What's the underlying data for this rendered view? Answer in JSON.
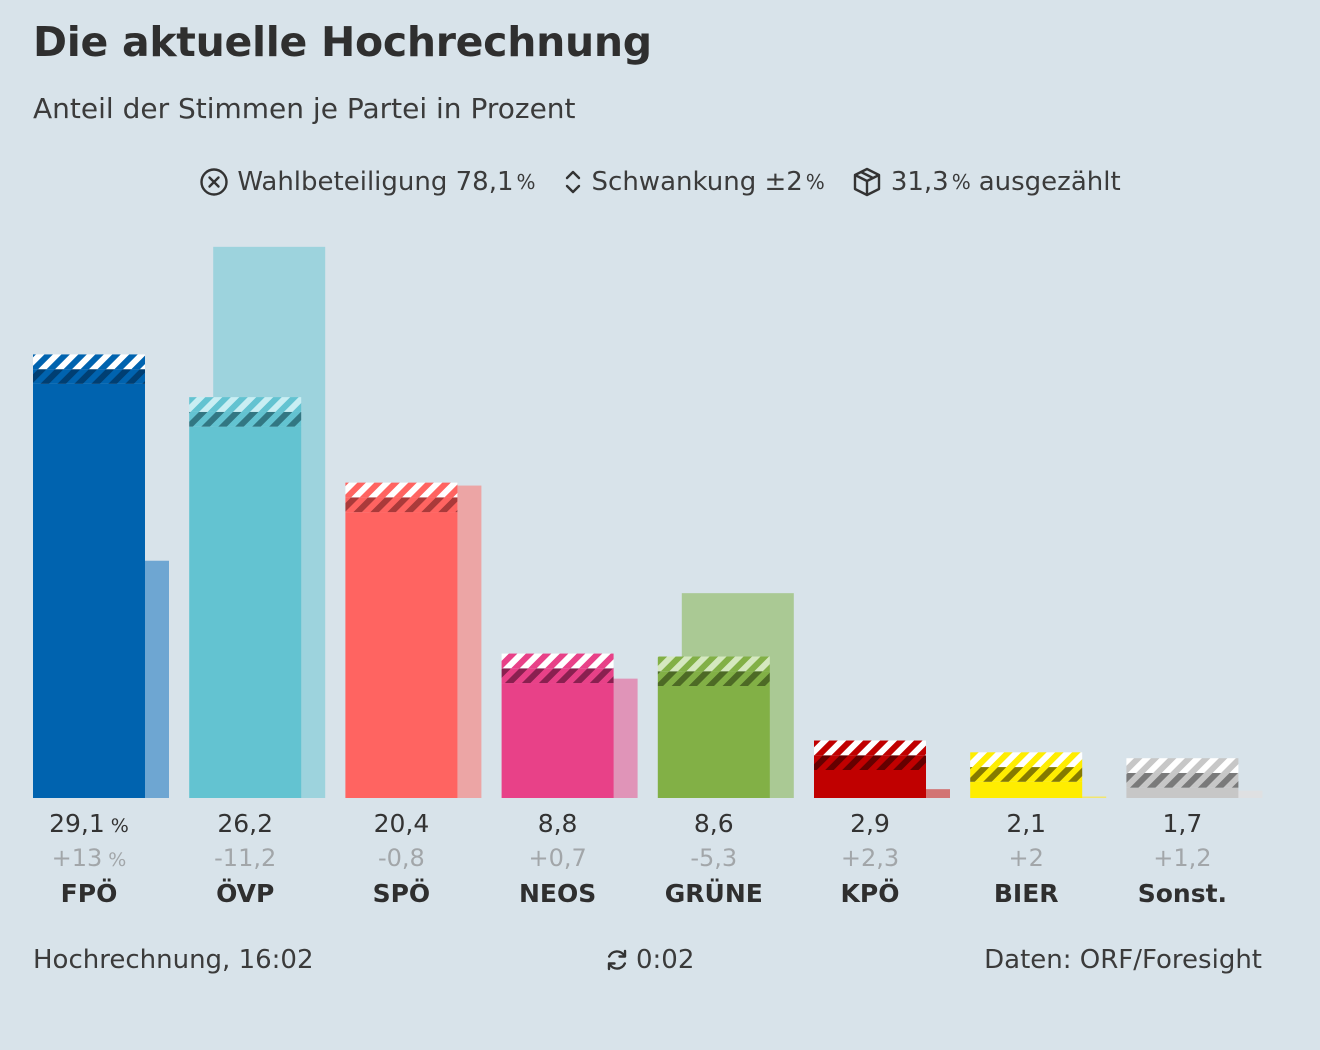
{
  "header": {
    "title": "Die aktuelle Hochrechnung",
    "subtitle": "Anteil der Stimmen je Partei in Prozent"
  },
  "info": {
    "turnout_label": "Wahlbeteiligung 78,1",
    "swing_label": "Schwankung ±2",
    "counted_value": "31,3",
    "counted_label": "ausgezählt",
    "pct_sign": "%"
  },
  "footer": {
    "timestamp": "Hochrechnung, 16:02",
    "refresh": "0:02",
    "source": "Daten: ORF/Foresight"
  },
  "chart_data": {
    "type": "bar",
    "categories": [
      "FPÖ",
      "ÖVP",
      "SPÖ",
      "NEOS",
      "GRÜNE",
      "KPÖ",
      "BIER",
      "Sonst."
    ],
    "series": [
      {
        "values": [
          29.1,
          26.2,
          20.4,
          8.8,
          8.6,
          2.9,
          2.1,
          1.7
        ]
      },
      {
        "values": [
          16.1,
          37.4,
          21.2,
          8.1,
          13.9,
          0.6,
          0.1,
          0.5
        ]
      }
    ],
    "value_labels": [
      "29,1",
      "26,2",
      "20,4",
      "8,8",
      "8,6",
      "2,9",
      "2,1",
      "1,7"
    ],
    "change_labels": [
      "+13",
      "-11,2",
      "-0,8",
      "+0,7",
      "-5,3",
      "+2,3",
      "+2",
      "+1,2"
    ],
    "uncertainty": 2,
    "ylim": [
      0,
      38
    ],
    "colors": [
      "#0063af",
      "#63c3d1",
      "#ff6461",
      "#e84188",
      "#82b046",
      "#c00000",
      "#ffed00",
      "#c7c7c7"
    ],
    "previous_colors": [
      "#6ea6d2",
      "#9dd3dd",
      "#eca5a5",
      "#e094b8",
      "#aac994",
      "#d27474",
      "#f2e66e",
      "#dfe0e2"
    ],
    "hatch_colors": [
      "#003f73",
      "#327783",
      "#aa3a3a",
      "#8a2050",
      "#4d6a25",
      "#650000",
      "#857a00",
      "#7a7a7a"
    ],
    "hatch_light": [
      "#ffffff",
      "#c9eef3",
      "#ffffff",
      "#ffffff",
      "#d5e8bf",
      "#ffffff",
      "#ffffff",
      "#ffffff"
    ],
    "grid": false,
    "legend": "none"
  }
}
